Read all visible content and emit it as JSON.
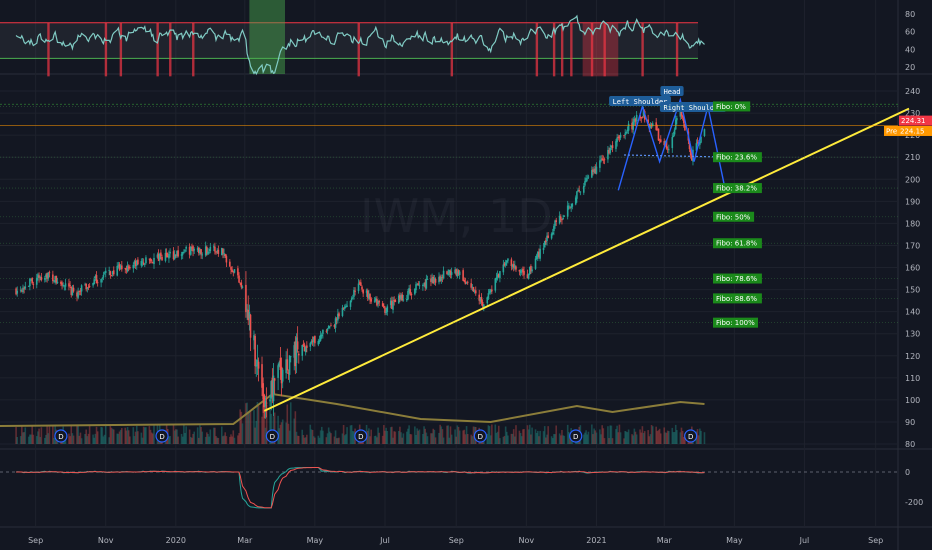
{
  "chart_data": {
    "type": "candlestick",
    "symbol_watermark": "IWM, 1D",
    "x_ticks": [
      "Sep",
      "Nov",
      "2020",
      "Mar",
      "May",
      "Jul",
      "Sep",
      "Nov",
      "2021",
      "Mar",
      "May",
      "Jul",
      "Sep"
    ],
    "price_axis": {
      "ticks": [
        "240",
        "230",
        "220",
        "210",
        "200",
        "190",
        "180",
        "170",
        "160",
        "150",
        "140",
        "130",
        "120",
        "110",
        "100",
        "90",
        "80"
      ]
    },
    "price_series_key": [
      [
        "2019-08-15",
        150
      ],
      [
        "2019-09-10",
        157
      ],
      [
        "2019-10-05",
        148
      ],
      [
        "2019-11-01",
        157
      ],
      [
        "2019-12-01",
        162
      ],
      [
        "2020-01-15",
        168
      ],
      [
        "2020-02-10",
        168
      ],
      [
        "2020-02-28",
        152
      ],
      [
        "2020-03-18",
        100
      ],
      [
        "2020-04-10",
        120
      ],
      [
        "2020-05-15",
        132
      ],
      [
        "2020-06-08",
        152
      ],
      [
        "2020-06-30",
        141
      ],
      [
        "2020-08-01",
        152
      ],
      [
        "2020-08-31",
        159
      ],
      [
        "2020-09-25",
        144
      ],
      [
        "2020-10-15",
        163
      ],
      [
        "2020-11-01",
        155
      ],
      [
        "2020-11-20",
        175
      ],
      [
        "2020-12-15",
        193
      ],
      [
        "2021-01-15",
        215
      ],
      [
        "2021-02-10",
        230
      ],
      [
        "2021-03-05",
        213
      ],
      [
        "2021-03-15",
        233
      ],
      [
        "2021-03-25",
        210
      ],
      [
        "2021-04-05",
        223
      ]
    ],
    "current_price_tag": {
      "label": "224.31",
      "color": "#f23645"
    },
    "pre_price_tag": {
      "label": "Pre",
      "value": "224.15",
      "color": "#ff9800"
    },
    "trendline": {
      "color": "#ffeb3b",
      "from": [
        "2020-03-18",
        95
      ],
      "to": [
        "2021-09-30",
        232
      ]
    },
    "fibonacci_levels": [
      {
        "label": "Fibo:",
        "pct": "0%",
        "price": 233
      },
      {
        "label": "Fibo:",
        "pct": "23.6%",
        "price": 210
      },
      {
        "label": "Fibo:",
        "pct": "38.2%",
        "price": 196
      },
      {
        "label": "Fibo:",
        "pct": "50%",
        "price": 183
      },
      {
        "label": "Fibo:",
        "pct": "61.8%",
        "price": 171
      },
      {
        "label": "Fibo:",
        "pct": "78.6%",
        "price": 155
      },
      {
        "label": "Fibo:",
        "pct": "88.6%",
        "price": 146
      },
      {
        "label": "Fibo:",
        "pct": "100%",
        "price": 135
      }
    ],
    "pattern_labels": {
      "left_shoulder": "Left Shoulder",
      "head": "Head",
      "right_shoulder": "Right Shoulder"
    },
    "rsi_axis": {
      "ticks": [
        "80",
        "60",
        "40",
        "20"
      ]
    },
    "rsi_band": {
      "upper": 70,
      "lower": 30
    },
    "macd_axis": {
      "ticks": [
        "0",
        "-200"
      ]
    },
    "dividend_marker": "D",
    "dividend_dates": [
      "2019-09-23",
      "2019-12-20",
      "2020-03-25",
      "2020-06-10",
      "2020-09-22",
      "2020-12-14",
      "2021-03-24"
    ]
  }
}
